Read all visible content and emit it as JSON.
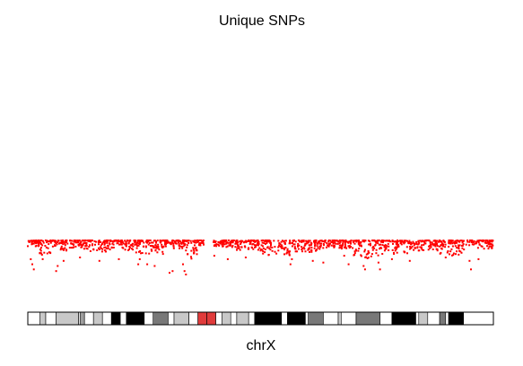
{
  "chart_data": {
    "type": "scatter",
    "title": "Unique SNPs",
    "xlabel": "chrX",
    "ylabel": "",
    "point_color": "#ff0000",
    "chromosome_length_mb": 156,
    "centromere_gap_mb": [
      59,
      62
    ],
    "density_bands": [
      {
        "start": 0,
        "end": 4,
        "depth": 0.2
      },
      {
        "start": 4,
        "end": 8,
        "depth": 0.45
      },
      {
        "start": 8,
        "end": 13,
        "depth": 0.3
      },
      {
        "start": 13,
        "end": 20,
        "depth": 0.25
      },
      {
        "start": 20,
        "end": 28,
        "depth": 0.35
      },
      {
        "start": 28,
        "end": 36,
        "depth": 0.3
      },
      {
        "start": 36,
        "end": 46,
        "depth": 0.4
      },
      {
        "start": 46,
        "end": 53,
        "depth": 0.25
      },
      {
        "start": 53,
        "end": 57,
        "depth": 0.55
      },
      {
        "start": 57,
        "end": 59,
        "depth": 0.15
      },
      {
        "start": 62,
        "end": 70,
        "depth": 0.2
      },
      {
        "start": 70,
        "end": 78,
        "depth": 0.3
      },
      {
        "start": 78,
        "end": 88,
        "depth": 0.45
      },
      {
        "start": 88,
        "end": 98,
        "depth": 0.35
      },
      {
        "start": 98,
        "end": 108,
        "depth": 0.25
      },
      {
        "start": 108,
        "end": 118,
        "depth": 0.55
      },
      {
        "start": 118,
        "end": 128,
        "depth": 0.4
      },
      {
        "start": 128,
        "end": 138,
        "depth": 0.3
      },
      {
        "start": 138,
        "end": 148,
        "depth": 0.45
      },
      {
        "start": 148,
        "end": 156,
        "depth": 0.25
      }
    ],
    "deep_points_mb": [
      [
        1.0,
        0.55
      ],
      [
        1.5,
        0.7
      ],
      [
        2.0,
        0.85
      ],
      [
        5.0,
        0.55
      ],
      [
        9.5,
        0.9
      ],
      [
        10.0,
        0.75
      ],
      [
        12.0,
        0.6
      ],
      [
        17.5,
        0.5
      ],
      [
        24.0,
        0.6
      ],
      [
        30.5,
        0.55
      ],
      [
        37.0,
        0.7
      ],
      [
        37.5,
        0.55
      ],
      [
        40.0,
        0.7
      ],
      [
        42.5,
        0.75
      ],
      [
        47.5,
        0.95
      ],
      [
        48.5,
        0.9
      ],
      [
        52.0,
        0.7
      ],
      [
        52.5,
        0.9
      ],
      [
        53.0,
        1.0
      ],
      [
        57.0,
        0.05
      ],
      [
        62.5,
        0.45
      ],
      [
        67.0,
        0.55
      ],
      [
        73.0,
        0.5
      ],
      [
        88.0,
        0.7
      ],
      [
        88.5,
        0.55
      ],
      [
        95.5,
        0.6
      ],
      [
        99.0,
        0.65
      ],
      [
        106.0,
        0.45
      ],
      [
        107.5,
        0.7
      ],
      [
        112.5,
        0.75
      ],
      [
        113.0,
        0.85
      ],
      [
        117.5,
        0.65
      ],
      [
        118.0,
        0.85
      ],
      [
        122.0,
        0.55
      ],
      [
        128.0,
        0.6
      ],
      [
        140.0,
        0.5
      ],
      [
        148.0,
        0.6
      ],
      [
        148.5,
        0.85
      ],
      [
        151.0,
        0.55
      ]
    ]
  },
  "ideogram": {
    "bands": [
      {
        "start": 0,
        "end": 4,
        "stain": "gneg"
      },
      {
        "start": 4,
        "end": 6,
        "stain": "gpos25"
      },
      {
        "start": 6,
        "end": 9.5,
        "stain": "gneg"
      },
      {
        "start": 9.5,
        "end": 17,
        "stain": "gpos25"
      },
      {
        "start": 17,
        "end": 17.5,
        "stain": "gneg"
      },
      {
        "start": 17.5,
        "end": 19,
        "stain": "gpos50"
      },
      {
        "start": 19,
        "end": 22,
        "stain": "gneg"
      },
      {
        "start": 22,
        "end": 25,
        "stain": "gpos25"
      },
      {
        "start": 25,
        "end": 28,
        "stain": "gneg"
      },
      {
        "start": 28,
        "end": 31,
        "stain": "gpos100"
      },
      {
        "start": 31,
        "end": 33,
        "stain": "gneg"
      },
      {
        "start": 33,
        "end": 39,
        "stain": "gpos100"
      },
      {
        "start": 39,
        "end": 42,
        "stain": "gneg"
      },
      {
        "start": 42,
        "end": 47,
        "stain": "gpos75"
      },
      {
        "start": 47,
        "end": 49,
        "stain": "gneg"
      },
      {
        "start": 49,
        "end": 54,
        "stain": "gpos25"
      },
      {
        "start": 54,
        "end": 57,
        "stain": "gneg"
      },
      {
        "start": 57,
        "end": 60,
        "stain": "acen"
      },
      {
        "start": 60,
        "end": 63,
        "stain": "acen"
      },
      {
        "start": 63,
        "end": 65,
        "stain": "gneg"
      },
      {
        "start": 65,
        "end": 68,
        "stain": "gpos25"
      },
      {
        "start": 68,
        "end": 70,
        "stain": "gneg"
      },
      {
        "start": 70,
        "end": 74,
        "stain": "gpos25"
      },
      {
        "start": 74,
        "end": 76,
        "stain": "gneg"
      },
      {
        "start": 76,
        "end": 85,
        "stain": "gpos100"
      },
      {
        "start": 85,
        "end": 87,
        "stain": "gneg"
      },
      {
        "start": 87,
        "end": 93,
        "stain": "gpos100"
      },
      {
        "start": 93,
        "end": 94,
        "stain": "gneg"
      },
      {
        "start": 94,
        "end": 99,
        "stain": "gpos75"
      },
      {
        "start": 99,
        "end": 104,
        "stain": "gneg"
      },
      {
        "start": 104,
        "end": 105,
        "stain": "gpos25"
      },
      {
        "start": 105,
        "end": 110,
        "stain": "gneg"
      },
      {
        "start": 110,
        "end": 118,
        "stain": "gpos75"
      },
      {
        "start": 118,
        "end": 122,
        "stain": "gneg"
      },
      {
        "start": 122,
        "end": 130,
        "stain": "gpos100"
      },
      {
        "start": 130,
        "end": 131,
        "stain": "gneg"
      },
      {
        "start": 131,
        "end": 134,
        "stain": "gpos25"
      },
      {
        "start": 134,
        "end": 138,
        "stain": "gneg"
      },
      {
        "start": 138,
        "end": 140,
        "stain": "gpos75"
      },
      {
        "start": 140,
        "end": 141,
        "stain": "gneg"
      },
      {
        "start": 141,
        "end": 146,
        "stain": "gpos100"
      },
      {
        "start": 146,
        "end": 156,
        "stain": "gneg"
      }
    ],
    "stain_colors": {
      "gneg": "#ffffff",
      "gpos25": "#c8c8c8",
      "gpos50": "#9e9e9e",
      "gpos75": "#787878",
      "gpos100": "#000000",
      "acen": "#e03b3b"
    }
  }
}
